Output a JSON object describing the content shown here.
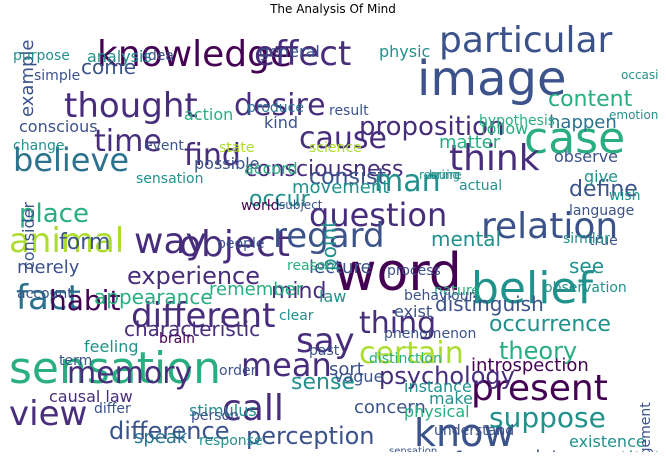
{
  "title": "The Analysis Of Mind",
  "palette": {
    "dark_purple": "#440154",
    "indigo": "#472d7b",
    "slate_blue": "#3b528b",
    "steel_blue": "#2c728e",
    "teal": "#21918c",
    "green_teal": "#28ae80",
    "green": "#5ec962",
    "lime": "#addc30",
    "yellow": "#fde725"
  },
  "words": [
    "knowledge",
    "image",
    "particular",
    "word",
    "belief",
    "sensation",
    "object",
    "case",
    "desire",
    "thought",
    "effect",
    "believe",
    "cause",
    "think",
    "question",
    "relation",
    "animal",
    "way",
    "regard",
    "fact",
    "different",
    "thing",
    "say",
    "certain",
    "memory",
    "mean",
    "call",
    "present",
    "know",
    "view",
    "time",
    "find",
    "consciousness",
    "man",
    "proposition",
    "experience",
    "habit",
    "place",
    "occur",
    "form",
    "occurrence",
    "psychology",
    "mind",
    "sense",
    "theory",
    "suppose",
    "difference",
    "perception",
    "come",
    "example",
    "consist",
    "matter",
    "content",
    "observe",
    "follow",
    "happen",
    "movement",
    "define",
    "mental",
    "lecture",
    "distinguish",
    "introspection",
    "characteristic",
    "feeling",
    "appearance",
    "remember",
    "concern",
    "physical",
    "speak",
    "instance",
    "stimulus",
    "vague",
    "sort",
    "constitute",
    "far",
    "datum",
    "existence",
    "judgement",
    "general",
    "physic",
    "analysis",
    "kind",
    "action",
    "merely",
    "consider",
    "account",
    "causal law",
    "definition",
    "law",
    "exist",
    "nature",
    "observation",
    "language",
    "true",
    "wish",
    "give",
    "possible",
    "accord",
    "state",
    "science",
    "result",
    "world",
    "brain",
    "term",
    "past",
    "reason",
    "similar",
    "see",
    "make",
    "sensation",
    "conscious",
    "change",
    "event",
    "produce",
    "simple",
    "purpose",
    "idea",
    "occasion",
    "hypothesis",
    "emotion",
    "require",
    "actual",
    "bring",
    "subject",
    "people",
    "clear",
    "phenomenon",
    "point",
    "process",
    "behaviour",
    "differ",
    "person",
    "order",
    "distinction",
    "understand",
    "response"
  ]
}
